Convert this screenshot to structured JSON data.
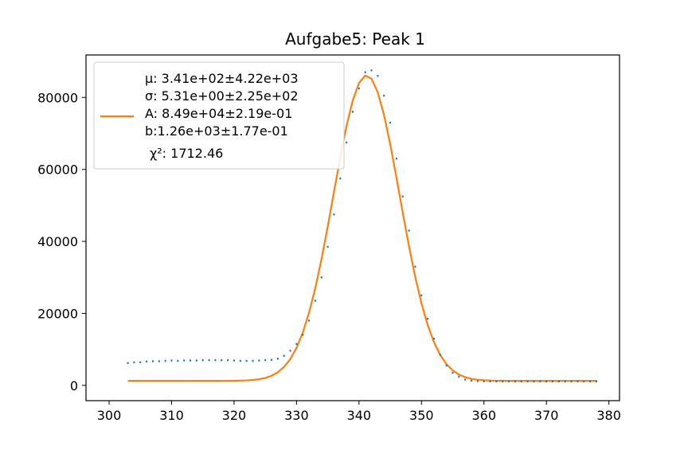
{
  "chart_data": {
    "type": "scatter",
    "title": "Aufgabe5: Peak 1",
    "xlabel": "",
    "ylabel": "",
    "xlim": [
      296.3,
      381.7
    ],
    "ylim": [
      -4250,
      91800
    ],
    "xticks": [
      300,
      310,
      320,
      330,
      340,
      350,
      360,
      370,
      380
    ],
    "yticks": [
      0,
      20000,
      40000,
      60000,
      80000
    ],
    "grid": false,
    "legend_placement": "top-left",
    "colors": {
      "data": "#1f77b4",
      "fit": "#ff7f0e"
    },
    "legend": {
      "fit_lines": [
        "μ: 3.41e+02±4.22e+03",
        "σ: 5.31e+00±2.25e+02",
        "A: 8.49e+04±2.19e-01",
        "b:1.26e+03±1.77e-01"
      ],
      "chi_label": "χ²: 1712.46"
    },
    "series": [
      {
        "role": "data",
        "x": [
          303,
          304,
          305,
          306,
          307,
          308,
          309,
          310,
          311,
          312,
          313,
          314,
          315,
          316,
          317,
          318,
          319,
          320,
          321,
          322,
          323,
          324,
          325,
          326,
          327,
          328,
          329,
          330,
          331,
          332,
          333,
          334,
          335,
          336,
          337,
          338,
          339,
          340,
          341,
          342,
          343,
          344,
          345,
          346,
          347,
          348,
          349,
          350,
          351,
          352,
          353,
          354,
          355,
          356,
          357,
          358,
          359,
          360,
          361,
          362,
          363,
          364,
          365,
          366,
          367,
          368,
          369,
          370,
          371,
          372,
          373,
          374,
          375,
          376,
          377,
          378
        ],
        "y": [
          6200,
          6400,
          6400,
          6600,
          6700,
          6700,
          6800,
          6900,
          6800,
          6900,
          6900,
          6900,
          7000,
          7000,
          7000,
          7000,
          7000,
          6900,
          6800,
          6800,
          6800,
          6900,
          7000,
          7100,
          7400,
          8200,
          9600,
          11500,
          14000,
          18000,
          23500,
          30000,
          38500,
          47500,
          57500,
          67500,
          76000,
          82500,
          87000,
          87500,
          86000,
          80500,
          73000,
          63000,
          52500,
          43000,
          33000,
          25000,
          18500,
          13000,
          8500,
          5500,
          3500,
          2400,
          1600,
          1300,
          1200,
          1100,
          1100,
          1100,
          1100,
          1100,
          1100,
          1100,
          1100,
          1100,
          1100,
          1100,
          1100,
          1100,
          1100,
          1100,
          1100,
          1100,
          1100,
          1100
        ]
      },
      {
        "role": "fit",
        "mu": 341.2,
        "sigma": 5.31,
        "A": 84900,
        "b": 1260,
        "x_range": [
          303,
          378
        ]
      }
    ]
  }
}
